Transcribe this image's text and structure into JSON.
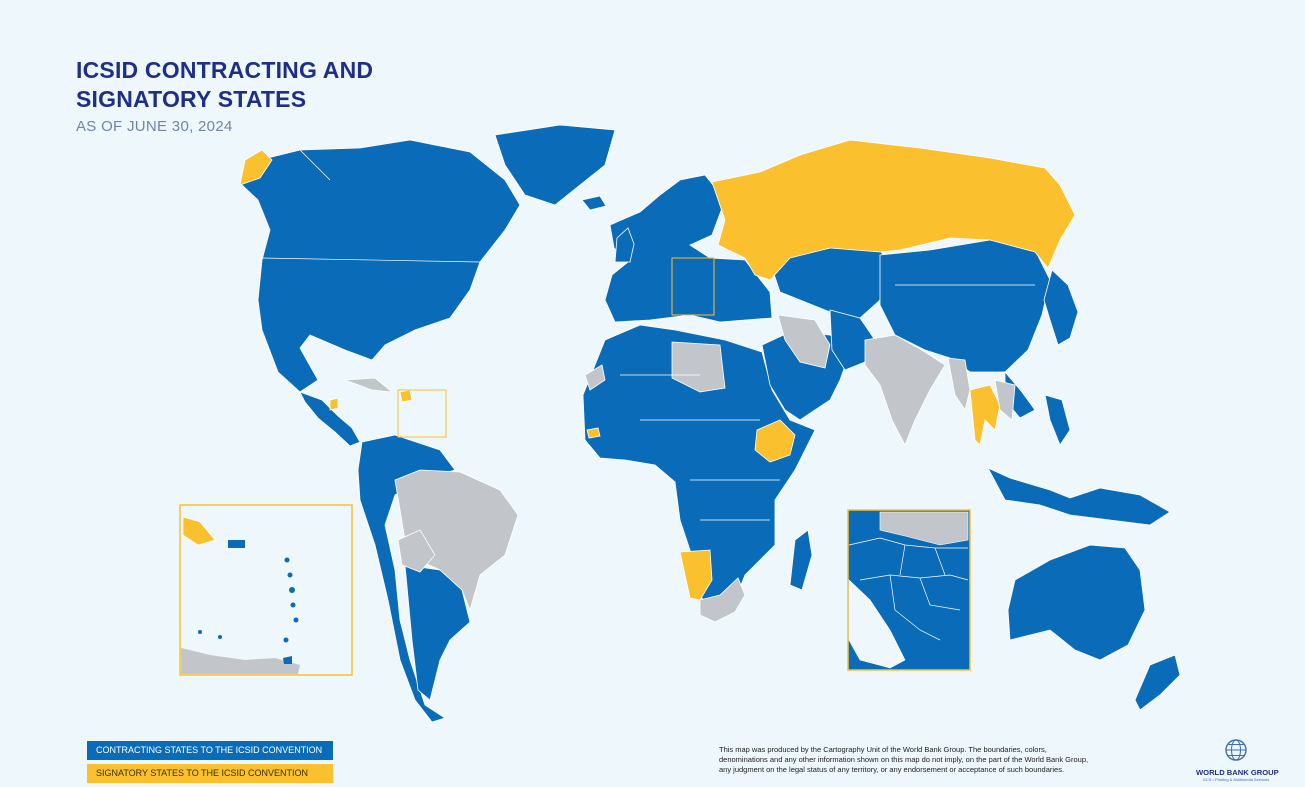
{
  "header": {
    "title_line1": "ICSID CONTRACTING AND",
    "title_line2": "SIGNATORY STATES",
    "subtitle": "AS OF JUNE 30, 2024"
  },
  "colors": {
    "ocean": "#eef7fc",
    "contracting": "#0a6cb8",
    "signatory": "#fbc02d",
    "non_member": "#c2c6ca",
    "title": "#1f2f87",
    "border": "#ffffff"
  },
  "legend": {
    "contracting_label": "CONTRACTING STATES TO THE ICSID CONVENTION",
    "signatory_label": "SIGNATORY STATES TO THE ICSID CONVENTION"
  },
  "disclaimer": {
    "line1": "This map was produced by the Cartography Unit of the World Bank Group. The boundaries, colors,",
    "line2": "denominations and any other information shown on this map do not imply, on the part of the World Bank Group,",
    "line3": "any judgment on the legal status of any territory, or any endorsement or acceptance of such boundaries."
  },
  "logo": {
    "name": "WORLD BANK GROUP",
    "sub": "GCS • Printing & Multimedia Services",
    "icon": "globe-icon"
  },
  "insets": [
    {
      "name": "caribbean-inset"
    },
    {
      "name": "balkans-inset"
    }
  ]
}
